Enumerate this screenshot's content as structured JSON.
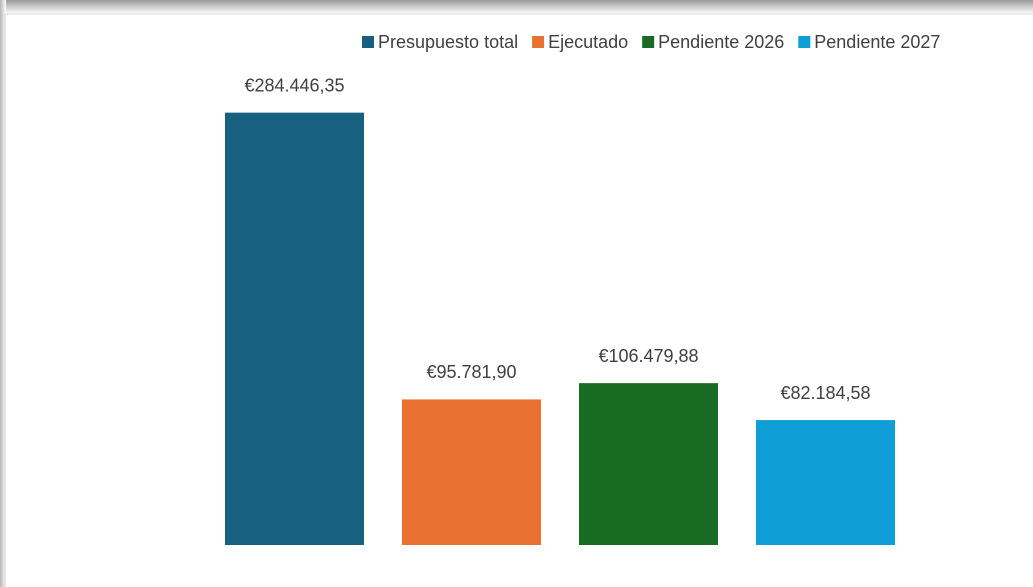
{
  "chart_data": {
    "type": "bar",
    "series": [
      {
        "name": "Presupuesto total",
        "color": "#17607f",
        "values": [
          284446.35
        ],
        "value_labels": [
          "€284.446,35"
        ]
      },
      {
        "name": "Ejecutado",
        "color": "#e97132",
        "values": [
          95781.9
        ],
        "value_labels": [
          "€95.781,90"
        ]
      },
      {
        "name": "Pendiente 2026",
        "color": "#196b24",
        "values": [
          106479.88
        ],
        "value_labels": [
          "€106.479,88"
        ]
      },
      {
        "name": "Pendiente 2027",
        "color": "#0f9ed5",
        "values": [
          82184.58
        ],
        "value_labels": [
          "€82.184,58"
        ]
      }
    ],
    "ylim": [
      0,
      300000
    ],
    "legend": "top"
  }
}
